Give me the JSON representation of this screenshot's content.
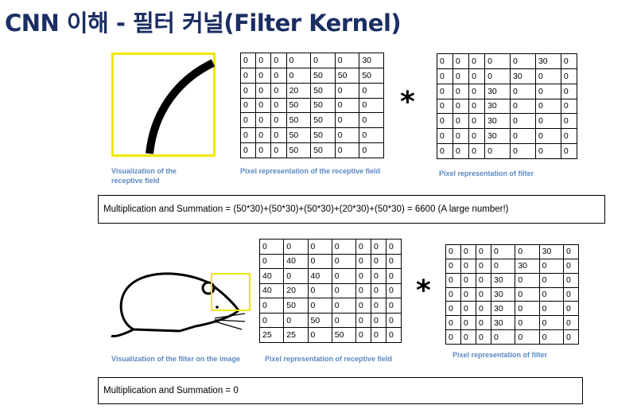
{
  "title": "CNN 이해   - 필터 커널(Filter Kernel)",
  "colors": {
    "title": "#1b2e63",
    "caption": "#5b89c2",
    "highlight": "#f2e600"
  },
  "top": {
    "field_caption": "Visualization of the receptive field",
    "pixel_caption": "Pixel representation  of the receptive field",
    "filter_caption": "Pixel representation  of filter",
    "operator": "*",
    "pixel_grid": [
      [
        "0",
        "0",
        "0",
        "0",
        "0",
        "0",
        "30"
      ],
      [
        "0",
        "0",
        "0",
        "0",
        "50",
        "50",
        "50"
      ],
      [
        "0",
        "0",
        "0",
        "20",
        "50",
        "0",
        "0"
      ],
      [
        "0",
        "0",
        "0",
        "50",
        "50",
        "0",
        "0"
      ],
      [
        "0",
        "0",
        "0",
        "50",
        "50",
        "0",
        "0"
      ],
      [
        "0",
        "0",
        "0",
        "50",
        "50",
        "0",
        "0"
      ],
      [
        "0",
        "0",
        "0",
        "50",
        "50",
        "0",
        "0"
      ]
    ],
    "filter_grid": [
      [
        "0",
        "0",
        "0",
        "0",
        "0",
        "30",
        "0"
      ],
      [
        "0",
        "0",
        "0",
        "0",
        "30",
        "0",
        "0"
      ],
      [
        "0",
        "0",
        "0",
        "30",
        "0",
        "0",
        "0"
      ],
      [
        "0",
        "0",
        "0",
        "30",
        "0",
        "0",
        "0"
      ],
      [
        "0",
        "0",
        "0",
        "30",
        "0",
        "0",
        "0"
      ],
      [
        "0",
        "0",
        "0",
        "30",
        "0",
        "0",
        "0"
      ],
      [
        "0",
        "0",
        "0",
        "0",
        "0",
        "0",
        "0"
      ]
    ],
    "summation": "Multiplication and Summation = (50*30)+(50*30)+(50*30)+(20*30)+(50*30) = 6600 (A large number!)"
  },
  "bottom": {
    "image_caption": "Visualization of the filter on the image",
    "pixel_caption": "Pixel representation  of receptive field",
    "filter_caption": "Pixel representation  of filter",
    "operator": "*",
    "pixel_grid": [
      [
        "0",
        "0",
        "0",
        "0",
        "0",
        "0",
        "0"
      ],
      [
        "0",
        "40",
        "0",
        "0",
        "0",
        "0",
        "0"
      ],
      [
        "40",
        "0",
        "40",
        "0",
        "0",
        "0",
        "0"
      ],
      [
        "40",
        "20",
        "0",
        "0",
        "0",
        "0",
        "0"
      ],
      [
        "0",
        "50",
        "0",
        "0",
        "0",
        "0",
        "0"
      ],
      [
        "0",
        "0",
        "50",
        "0",
        "0",
        "0",
        "0"
      ],
      [
        "25",
        "25",
        "0",
        "50",
        "0",
        "0",
        "0"
      ]
    ],
    "filter_grid": [
      [
        "0",
        "0",
        "0",
        "0",
        "0",
        "30",
        "0"
      ],
      [
        "0",
        "0",
        "0",
        "0",
        "30",
        "0",
        "0"
      ],
      [
        "0",
        "0",
        "0",
        "30",
        "0",
        "0",
        "0"
      ],
      [
        "0",
        "0",
        "0",
        "30",
        "0",
        "0",
        "0"
      ],
      [
        "0",
        "0",
        "0",
        "30",
        "0",
        "0",
        "0"
      ],
      [
        "0",
        "0",
        "0",
        "30",
        "0",
        "0",
        "0"
      ],
      [
        "0",
        "0",
        "0",
        "0",
        "0",
        "0",
        "0"
      ]
    ],
    "summation": "Multiplication and Summation = 0"
  }
}
